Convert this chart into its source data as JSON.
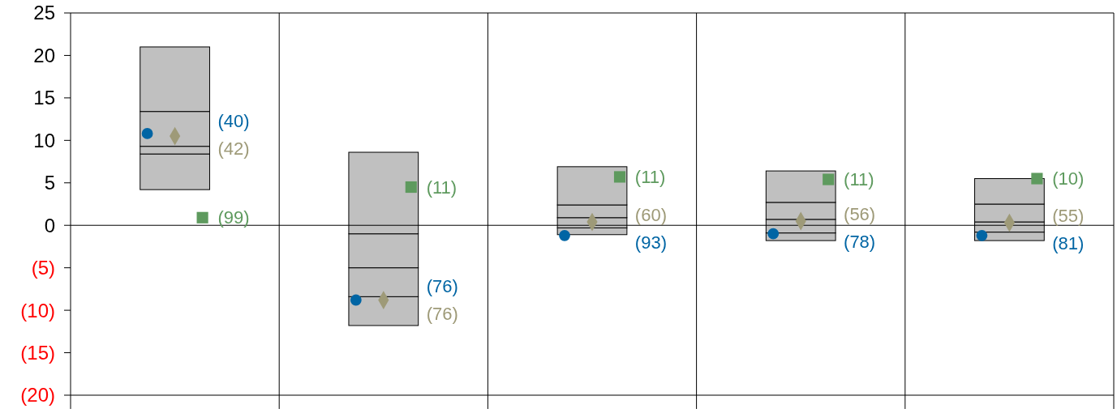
{
  "chart_data": {
    "type": "bar",
    "categories": [
      null,
      null,
      null,
      null,
      null
    ],
    "series": [
      {
        "type": "bar",
        "color": "#c0c0c0",
        "base": [
          4.2,
          -11.8,
          -1.1,
          -1.8,
          -1.8
        ],
        "values": [
          4.2,
          3.4,
          0.8,
          0.9,
          1.0
        ]
      },
      {
        "type": "bar",
        "color": "#c0c0c0",
        "base": [
          8.4,
          -8.4,
          -0.3,
          -0.9,
          -0.8
        ],
        "values": [
          0.9,
          3.4,
          1.2,
          1.6,
          1.2
        ]
      },
      {
        "type": "bar",
        "color": "#c0c0c0",
        "base": [
          9.3,
          -5.0,
          0.9,
          0.7,
          0.4
        ],
        "values": [
          4.1,
          4.0,
          1.5,
          2.0,
          2.1
        ]
      },
      {
        "type": "bar",
        "color": "#c0c0c0",
        "base": [
          13.4,
          -1.0,
          2.4,
          2.7,
          2.5
        ],
        "values": [
          7.6,
          9.6,
          4.5,
          3.7,
          3.0
        ]
      },
      {
        "type": "scatter",
        "marker": "circle",
        "color": "#0065a4",
        "values": [
          10.8,
          -8.8,
          -1.2,
          -1.0,
          -1.2
        ]
      },
      {
        "type": "scatter",
        "marker": "diamond",
        "color": "#9e9a78",
        "values": [
          10.5,
          -8.8,
          0.4,
          0.5,
          0.3
        ]
      },
      {
        "type": "scatter",
        "marker": "square",
        "color": "#5e9a5e",
        "values": [
          0.9,
          4.5,
          5.7,
          5.4,
          5.5
        ]
      }
    ],
    "annotations": [
      "(40)",
      "(42)",
      "(99)",
      "(76)",
      "(76)",
      "(11)",
      "(93)",
      "(60)",
      "(11)",
      "(78)",
      "(56)",
      "(11)",
      "(81)",
      "(55)",
      "(10)"
    ],
    "ylim": [
      -20,
      25
    ],
    "yticks": [
      {
        "value": -20,
        "label": "(20)"
      },
      {
        "value": -15,
        "label": "(15)"
      },
      {
        "value": -10,
        "label": "(10)"
      },
      {
        "value": -5,
        "label": "(5)"
      },
      0,
      5,
      10,
      15,
      20,
      25
    ],
    "ref_lines": [
      {
        "axis": "y",
        "value": 0,
        "color": "#000000"
      }
    ],
    "grid": "x"
  }
}
